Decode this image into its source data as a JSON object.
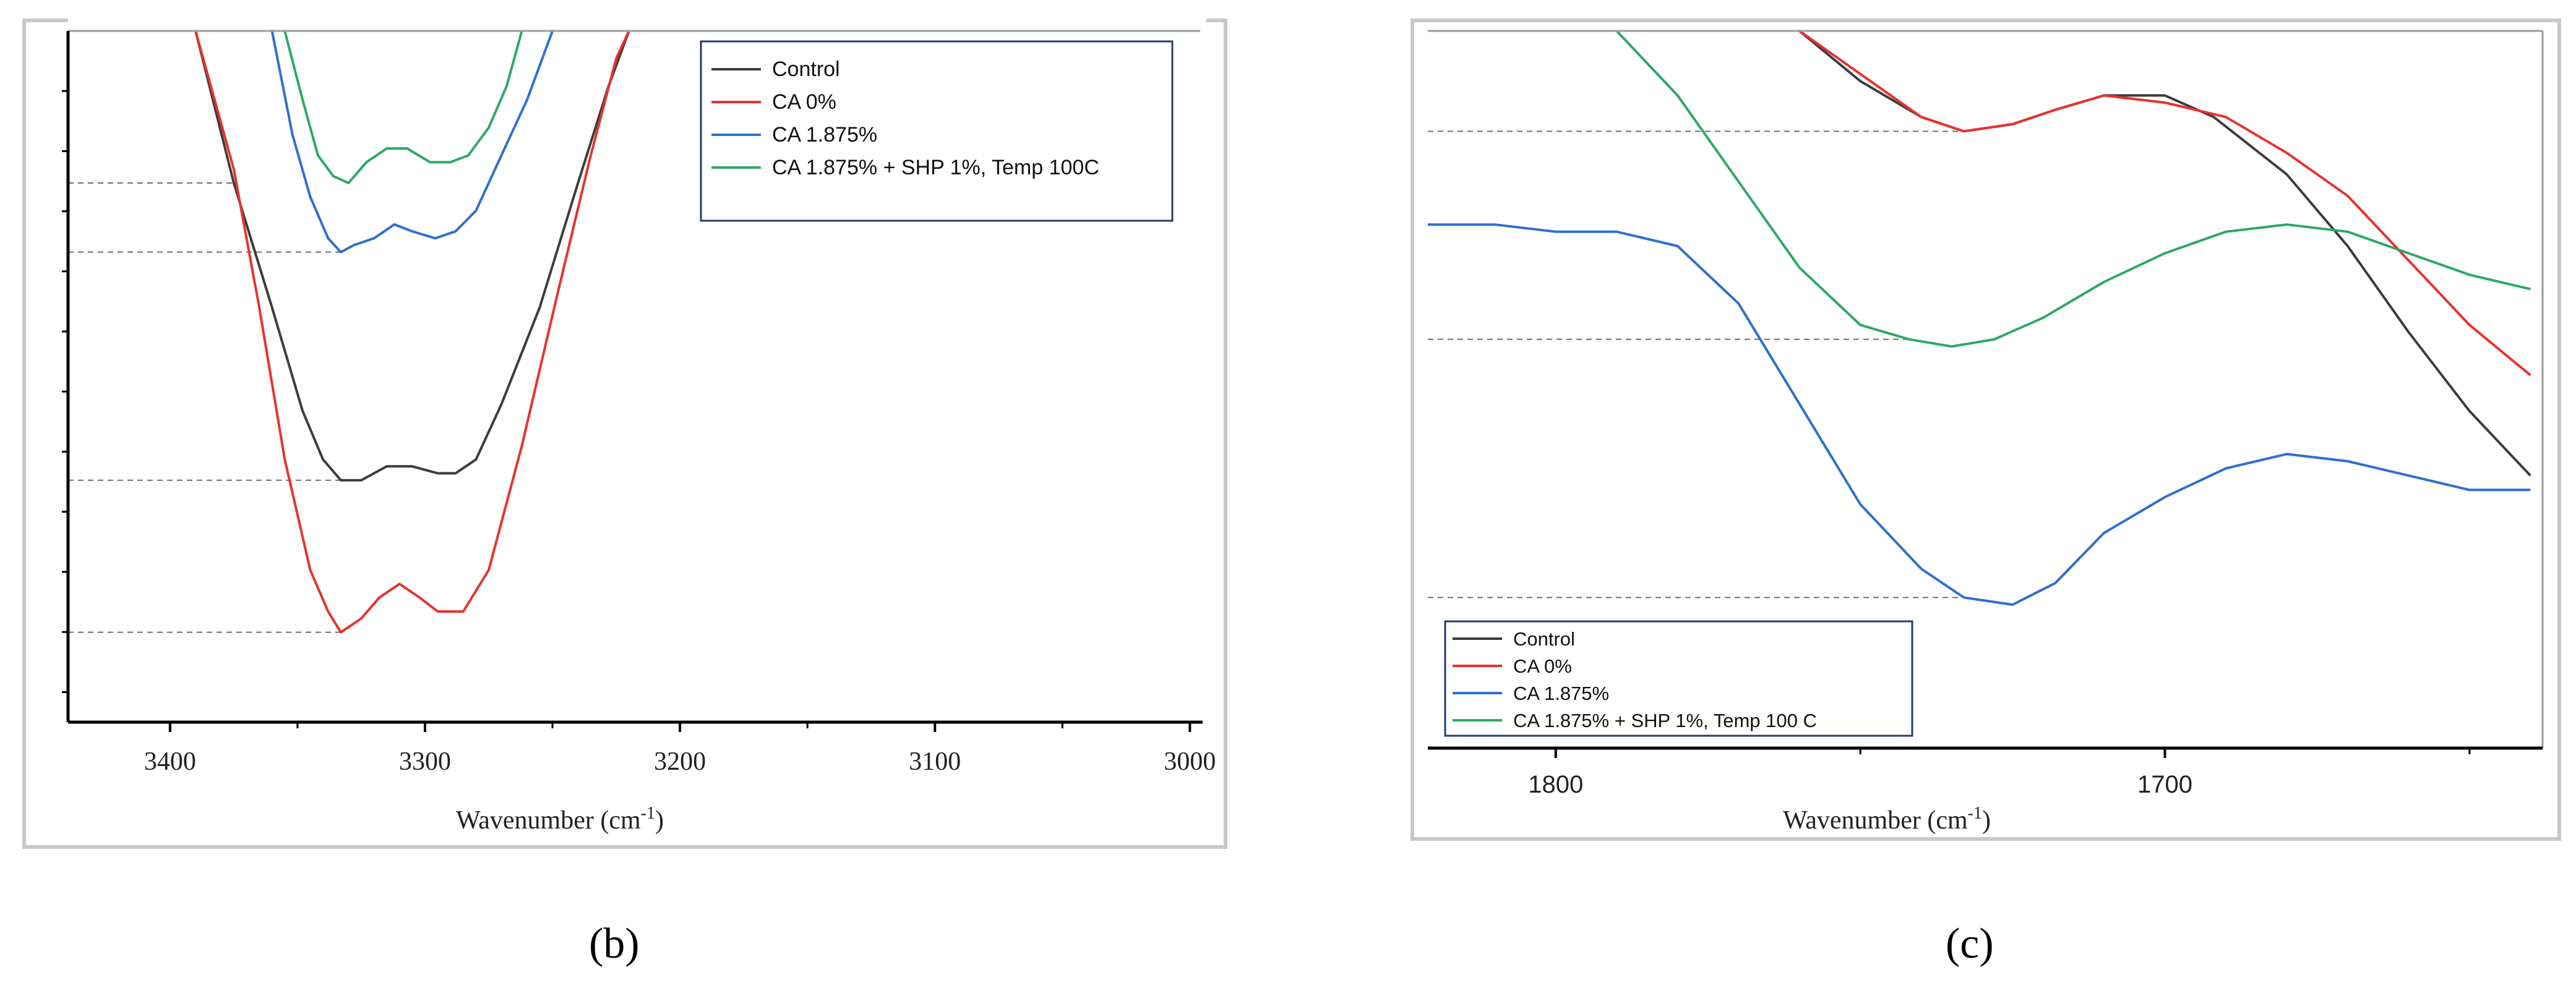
{
  "chart_data": [
    {
      "panel_label": "(b)",
      "type": "line",
      "xlabel": "Wavenumber (cm",
      "xlabel_sup": "-1",
      "xlabel_close": ")",
      "xlim": [
        3440,
        2995
      ],
      "ylim": [
        0,
        100
      ],
      "x_ticks": [
        3400,
        3300,
        3200,
        3100,
        3000
      ],
      "legend_position": "top-right",
      "series": [
        {
          "name": "Control",
          "color": "#3c3c3c",
          "points": [
            [
              3390,
              100
            ],
            [
              3375,
              78
            ],
            [
              3360,
              60
            ],
            [
              3348,
              45
            ],
            [
              3340,
              38
            ],
            [
              3333,
              35
            ],
            [
              3325,
              35
            ],
            [
              3315,
              37
            ],
            [
              3305,
              37
            ],
            [
              3295,
              36
            ],
            [
              3288,
              36
            ],
            [
              3280,
              38
            ],
            [
              3270,
              46
            ],
            [
              3255,
              60
            ],
            [
              3240,
              78
            ],
            [
              3228,
              92
            ],
            [
              3220,
              100
            ]
          ]
        },
        {
          "name": "CA 0%",
          "color": "#e8322d",
          "points": [
            [
              3390,
              100
            ],
            [
              3375,
              80
            ],
            [
              3365,
              60
            ],
            [
              3355,
              38
            ],
            [
              3345,
              22
            ],
            [
              3338,
              16
            ],
            [
              3333,
              13
            ],
            [
              3325,
              15
            ],
            [
              3318,
              18
            ],
            [
              3310,
              20
            ],
            [
              3302,
              18
            ],
            [
              3295,
              16
            ],
            [
              3285,
              16
            ],
            [
              3275,
              22
            ],
            [
              3262,
              40
            ],
            [
              3248,
              62
            ],
            [
              3235,
              82
            ],
            [
              3225,
              96
            ],
            [
              3220,
              100
            ]
          ]
        },
        {
          "name": "CA 1.875%",
          "color": "#2f6fd0",
          "points": [
            [
              3360,
              100
            ],
            [
              3352,
              85
            ],
            [
              3345,
              76
            ],
            [
              3338,
              70
            ],
            [
              3333,
              68
            ],
            [
              3328,
              69
            ],
            [
              3320,
              70
            ],
            [
              3312,
              72
            ],
            [
              3305,
              71
            ],
            [
              3296,
              70
            ],
            [
              3288,
              71
            ],
            [
              3280,
              74
            ],
            [
              3270,
              82
            ],
            [
              3260,
              90
            ],
            [
              3250,
              100
            ]
          ]
        },
        {
          "name": "CA 1.875% + SHP 1%, Temp 100C",
          "color": "#2ea866",
          "points": [
            [
              3355,
              100
            ],
            [
              3348,
              90
            ],
            [
              3342,
              82
            ],
            [
              3336,
              79
            ],
            [
              3330,
              78
            ],
            [
              3323,
              81
            ],
            [
              3315,
              83
            ],
            [
              3307,
              83
            ],
            [
              3298,
              81
            ],
            [
              3290,
              81
            ],
            [
              3283,
              82
            ],
            [
              3275,
              86
            ],
            [
              3268,
              92
            ],
            [
              3262,
              100
            ]
          ]
        }
      ],
      "reference_levels": [
        78,
        68,
        35,
        13
      ]
    },
    {
      "panel_label": "(c)",
      "type": "line",
      "xlabel": "Wavenumber (cm",
      "xlabel_sup": "-1",
      "xlabel_close": ")",
      "xlim": [
        1821,
        1638
      ],
      "ylim": [
        0,
        100
      ],
      "x_ticks": [
        1800,
        1700
      ],
      "legend_position": "bottom-left",
      "series": [
        {
          "name": "Control",
          "color": "#3c3c3c",
          "points": [
            [
              1760,
              100
            ],
            [
              1750,
              93
            ],
            [
              1740,
              88
            ],
            [
              1733,
              86
            ],
            [
              1725,
              87
            ],
            [
              1718,
              89
            ],
            [
              1710,
              91
            ],
            [
              1700,
              91
            ],
            [
              1692,
              88
            ],
            [
              1680,
              80
            ],
            [
              1670,
              70
            ],
            [
              1660,
              58
            ],
            [
              1650,
              47
            ],
            [
              1640,
              38
            ]
          ]
        },
        {
          "name": "CA 0%",
          "color": "#e8322d",
          "points": [
            [
              1760,
              100
            ],
            [
              1750,
              94
            ],
            [
              1740,
              88
            ],
            [
              1733,
              86
            ],
            [
              1725,
              87
            ],
            [
              1718,
              89
            ],
            [
              1710,
              91
            ],
            [
              1700,
              90
            ],
            [
              1690,
              88
            ],
            [
              1680,
              83
            ],
            [
              1670,
              77
            ],
            [
              1660,
              68
            ],
            [
              1650,
              59
            ],
            [
              1640,
              52
            ]
          ]
        },
        {
          "name": "CA 1.875%",
          "color": "#2f6fd0",
          "points": [
            [
              1821,
              73
            ],
            [
              1810,
              73
            ],
            [
              1800,
              72
            ],
            [
              1790,
              72
            ],
            [
              1780,
              70
            ],
            [
              1770,
              62
            ],
            [
              1760,
              48
            ],
            [
              1750,
              34
            ],
            [
              1740,
              25
            ],
            [
              1733,
              21
            ],
            [
              1725,
              20
            ],
            [
              1718,
              23
            ],
            [
              1710,
              30
            ],
            [
              1700,
              35
            ],
            [
              1690,
              39
            ],
            [
              1680,
              41
            ],
            [
              1670,
              40
            ],
            [
              1660,
              38
            ],
            [
              1650,
              36
            ],
            [
              1640,
              36
            ]
          ]
        },
        {
          "name": "CA 1.875% + SHP 1%, Temp 100 C",
          "color": "#2ea866",
          "points": [
            [
              1790,
              100
            ],
            [
              1780,
              91
            ],
            [
              1770,
              79
            ],
            [
              1760,
              67
            ],
            [
              1750,
              59
            ],
            [
              1742,
              57
            ],
            [
              1735,
              56
            ],
            [
              1728,
              57
            ],
            [
              1720,
              60
            ],
            [
              1710,
              65
            ],
            [
              1700,
              69
            ],
            [
              1690,
              72
            ],
            [
              1680,
              73
            ],
            [
              1670,
              72
            ],
            [
              1660,
              69
            ],
            [
              1650,
              66
            ],
            [
              1640,
              64
            ]
          ]
        }
      ],
      "reference_levels": [
        86,
        57,
        21
      ]
    }
  ]
}
